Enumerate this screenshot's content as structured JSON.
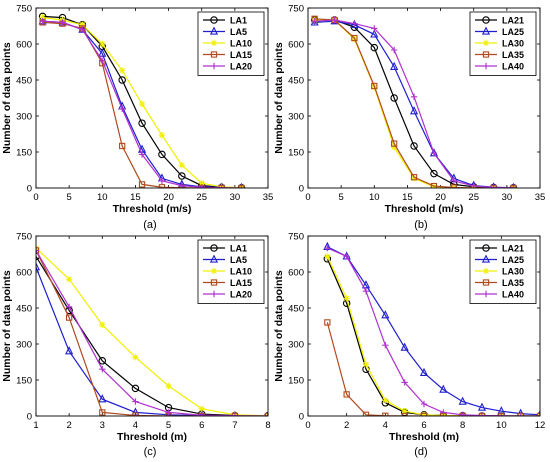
{
  "panels": [
    {
      "caption": "(a)",
      "xlabel": "Threshold (m/s)",
      "ylabel": "Number of data points",
      "xlim": [
        0,
        35
      ],
      "ylim": [
        0,
        750
      ],
      "xticks": [
        0,
        5,
        10,
        15,
        20,
        25,
        30,
        35
      ],
      "yticks": [
        0,
        150,
        300,
        450,
        600,
        750
      ],
      "legend_position": "top-right",
      "series": [
        {
          "name": "LA1",
          "color": "#000000",
          "marker": "circle",
          "x": [
            1,
            4,
            7,
            10,
            13,
            16,
            19,
            22,
            25,
            28,
            31
          ],
          "y": [
            715,
            710,
            680,
            590,
            450,
            270,
            140,
            50,
            10,
            3,
            1
          ]
        },
        {
          "name": "LA5",
          "color": "#1f1fd0",
          "marker": "triangle",
          "x": [
            1,
            4,
            7,
            10,
            13,
            16,
            19,
            22,
            25,
            28,
            31
          ],
          "y": [
            695,
            690,
            660,
            560,
            340,
            160,
            40,
            15,
            5,
            2,
            1
          ]
        },
        {
          "name": "LA10",
          "color": "#f0f000",
          "marker": "star",
          "x": [
            1,
            4,
            7,
            10,
            13,
            16,
            19,
            22,
            25,
            28,
            31
          ],
          "y": [
            710,
            700,
            680,
            600,
            490,
            350,
            220,
            95,
            20,
            5,
            1
          ]
        },
        {
          "name": "LA15",
          "color": "#b04a1e",
          "marker": "square",
          "x": [
            1,
            4,
            7,
            10,
            13,
            16,
            19,
            22,
            25,
            28,
            31
          ],
          "y": [
            690,
            685,
            665,
            520,
            175,
            15,
            3,
            1,
            0,
            0,
            0
          ]
        },
        {
          "name": "LA20",
          "color": "#b030d0",
          "marker": "plus",
          "x": [
            1,
            4,
            7,
            10,
            13,
            16,
            19,
            22,
            25,
            28,
            31
          ],
          "y": [
            695,
            690,
            660,
            530,
            330,
            140,
            30,
            10,
            3,
            1,
            0
          ]
        }
      ]
    },
    {
      "caption": "(b)",
      "xlabel": "Threshold (m/s)",
      "ylabel": "Number of data points",
      "xlim": [
        0,
        35
      ],
      "ylim": [
        0,
        750
      ],
      "xticks": [
        0,
        5,
        10,
        15,
        20,
        25,
        30,
        35
      ],
      "yticks": [
        0,
        150,
        300,
        450,
        600,
        750
      ],
      "legend_position": "top-right",
      "series": [
        {
          "name": "LA21",
          "color": "#000000",
          "marker": "circle",
          "x": [
            1,
            4,
            7,
            10,
            13,
            16,
            19,
            22,
            25,
            28,
            31
          ],
          "y": [
            700,
            700,
            670,
            585,
            375,
            175,
            60,
            15,
            5,
            2,
            1
          ]
        },
        {
          "name": "LA25",
          "color": "#1f1fd0",
          "marker": "triangle",
          "x": [
            1,
            4,
            7,
            10,
            13,
            16,
            19,
            22,
            25,
            28,
            31
          ],
          "y": [
            690,
            695,
            680,
            640,
            505,
            320,
            145,
            40,
            10,
            3,
            1
          ]
        },
        {
          "name": "LA30",
          "color": "#f0f000",
          "marker": "star",
          "x": [
            1,
            4,
            7,
            10,
            13,
            16,
            19,
            22,
            25,
            28,
            31
          ],
          "y": [
            700,
            700,
            620,
            420,
            170,
            40,
            5,
            1,
            0,
            0,
            0
          ]
        },
        {
          "name": "LA35",
          "color": "#b04a1e",
          "marker": "square",
          "x": [
            1,
            4,
            7,
            10,
            13,
            16,
            19,
            22,
            25,
            28,
            31
          ],
          "y": [
            705,
            700,
            625,
            425,
            185,
            45,
            8,
            2,
            0,
            0,
            0
          ]
        },
        {
          "name": "LA40",
          "color": "#b030d0",
          "marker": "plus",
          "x": [
            1,
            4,
            7,
            10,
            13,
            16,
            19,
            22,
            25,
            28,
            31
          ],
          "y": [
            695,
            700,
            685,
            665,
            575,
            380,
            145,
            30,
            8,
            2,
            1
          ]
        }
      ]
    },
    {
      "caption": "(c)",
      "xlabel": "Threshold (m)",
      "ylabel": "Number of data points",
      "xlim": [
        1,
        8
      ],
      "ylim": [
        0,
        750
      ],
      "xticks": [
        1,
        2,
        3,
        4,
        5,
        6,
        7,
        8
      ],
      "yticks": [
        0,
        150,
        300,
        450,
        600,
        750
      ],
      "legend_position": "top-right",
      "series": [
        {
          "name": "LA1",
          "color": "#000000",
          "marker": "circle",
          "x": [
            1,
            2,
            3,
            4,
            5,
            6,
            7,
            8
          ],
          "y": [
            665,
            440,
            230,
            115,
            35,
            8,
            2,
            1
          ]
        },
        {
          "name": "LA5",
          "color": "#1f1fd0",
          "marker": "triangle",
          "x": [
            1,
            2,
            3,
            4,
            5,
            6,
            7,
            8
          ],
          "y": [
            620,
            270,
            70,
            15,
            5,
            2,
            1,
            0
          ]
        },
        {
          "name": "LA10",
          "color": "#f0f000",
          "marker": "star",
          "x": [
            1,
            2,
            3,
            4,
            5,
            6,
            7,
            8
          ],
          "y": [
            700,
            570,
            380,
            245,
            125,
            30,
            5,
            1
          ]
        },
        {
          "name": "LA15",
          "color": "#b04a1e",
          "marker": "square",
          "x": [
            1,
            2,
            3,
            4,
            5,
            6,
            7,
            8
          ],
          "y": [
            690,
            410,
            15,
            2,
            0,
            0,
            0,
            0
          ]
        },
        {
          "name": "LA20",
          "color": "#b030d0",
          "marker": "plus",
          "x": [
            1,
            2,
            3,
            4,
            5,
            6,
            7,
            8
          ],
          "y": [
            690,
            455,
            195,
            60,
            15,
            3,
            1,
            0
          ]
        }
      ]
    },
    {
      "caption": "(d)",
      "xlabel": "Threshold (m)",
      "ylabel": "Number of data points",
      "xlim": [
        0,
        12
      ],
      "ylim": [
        0,
        750
      ],
      "xticks": [
        0,
        2,
        4,
        6,
        8,
        10,
        12
      ],
      "yticks": [
        0,
        150,
        300,
        450,
        600,
        750
      ],
      "legend_position": "top-right",
      "series": [
        {
          "name": "LA21",
          "color": "#000000",
          "marker": "circle",
          "x": [
            1,
            2,
            3,
            4,
            5,
            6,
            7,
            8,
            9,
            10,
            11,
            12
          ],
          "y": [
            655,
            470,
            195,
            55,
            15,
            5,
            2,
            1,
            0,
            0,
            0,
            0
          ]
        },
        {
          "name": "LA25",
          "color": "#1f1fd0",
          "marker": "triangle",
          "x": [
            1,
            2,
            3,
            4,
            5,
            6,
            7,
            8,
            9,
            10,
            11,
            12
          ],
          "y": [
            705,
            665,
            545,
            420,
            285,
            180,
            110,
            60,
            35,
            20,
            10,
            5
          ]
        },
        {
          "name": "LA30",
          "color": "#f0f000",
          "marker": "star",
          "x": [
            1,
            2,
            3,
            4,
            5,
            6,
            7,
            8,
            9,
            10,
            11,
            12
          ],
          "y": [
            665,
            490,
            215,
            65,
            20,
            5,
            2,
            1,
            0,
            0,
            0,
            0
          ]
        },
        {
          "name": "LA35",
          "color": "#b04a1e",
          "marker": "square",
          "x": [
            1,
            2,
            3,
            4,
            5,
            6,
            7,
            8,
            9,
            10,
            11,
            12
          ],
          "y": [
            390,
            90,
            5,
            1,
            0,
            0,
            0,
            0,
            0,
            0,
            0,
            0
          ]
        },
        {
          "name": "LA40",
          "color": "#b030d0",
          "marker": "plus",
          "x": [
            1,
            2,
            3,
            4,
            5,
            6,
            7,
            8,
            9,
            10,
            11,
            12
          ],
          "y": [
            700,
            665,
            520,
            295,
            140,
            50,
            15,
            5,
            2,
            1,
            0,
            0
          ]
        }
      ]
    }
  ]
}
